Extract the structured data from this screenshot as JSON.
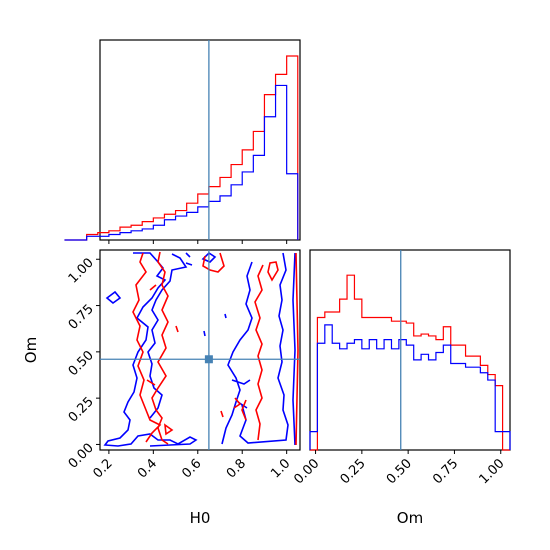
{
  "chart_data": {
    "type": "corner",
    "parameters": [
      "H0",
      "Om"
    ],
    "truths": {
      "H0": 0.65,
      "Om": 0.46
    },
    "truth_color": "#4682b4",
    "series": [
      {
        "color": "#ff0000"
      },
      {
        "color": "#0000ff"
      }
    ],
    "hist_H0": {
      "bins": [
        0.0,
        0.05,
        0.1,
        0.15,
        0.2,
        0.25,
        0.3,
        0.35,
        0.4,
        0.45,
        0.5,
        0.55,
        0.6,
        0.65,
        0.7,
        0.75,
        0.8,
        0.85,
        0.9,
        0.95,
        1.0,
        1.05
      ],
      "red": [
        0,
        0,
        0.03,
        0.04,
        0.05,
        0.07,
        0.08,
        0.1,
        0.12,
        0.14,
        0.16,
        0.2,
        0.25,
        0.29,
        0.34,
        0.41,
        0.49,
        0.59,
        0.79,
        0.9,
        1.0
      ],
      "blue": [
        0,
        0,
        0.02,
        0.02,
        0.03,
        0.04,
        0.05,
        0.06,
        0.08,
        0.11,
        0.13,
        0.15,
        0.18,
        0.21,
        0.24,
        0.3,
        0.37,
        0.46,
        0.67,
        0.84,
        0.36
      ]
    },
    "hist_Om": {
      "bins": [
        -0.03,
        0.01,
        0.05,
        0.09,
        0.13,
        0.17,
        0.21,
        0.25,
        0.29,
        0.33,
        0.37,
        0.41,
        0.45,
        0.49,
        0.53,
        0.57,
        0.61,
        0.65,
        0.69,
        0.73,
        0.77,
        0.81,
        0.85,
        0.89,
        0.93,
        0.97,
        1.01,
        1.05
      ],
      "red": [
        0.75,
        0.0,
        0.0,
        0.0,
        0.0,
        0.0,
        0.0,
        0.0,
        0.0,
        0.0,
        0.0,
        0.0,
        0.0,
        0.0,
        0.0,
        0.0,
        0.0,
        0.0,
        0.0,
        0.0,
        0.0,
        0.0,
        0.0,
        0.0,
        0.0,
        0.0,
        0.0
      ],
      "red_vals": [
        0.0,
        0.72,
        0.75,
        0.75,
        0.82,
        0.95,
        0.82,
        0.72,
        0.72,
        0.72,
        0.72,
        0.7,
        0.7,
        0.69,
        0.62,
        0.63,
        0.62,
        0.6,
        0.67,
        0.57,
        0.57,
        0.51,
        0.51,
        0.46,
        0.41,
        0.35,
        0.0
      ],
      "blue_vals": [
        0.1,
        0.58,
        0.68,
        0.58,
        0.55,
        0.58,
        0.6,
        0.55,
        0.6,
        0.55,
        0.6,
        0.55,
        0.6,
        0.57,
        0.49,
        0.52,
        0.49,
        0.53,
        0.57,
        0.47,
        0.47,
        0.45,
        0.45,
        0.42,
        0.38,
        0.1,
        0.1
      ]
    },
    "ticks_H0": [
      "0.2",
      "0.4",
      "0.6",
      "0.8",
      "1.0"
    ],
    "ticks_H0_values": [
      0.2,
      0.4,
      0.6,
      0.8,
      1.0
    ],
    "ticks_Om": [
      "0.00",
      "0.25",
      "0.50",
      "0.75",
      "1.00"
    ],
    "ticks_Om_values": [
      0.0,
      0.25,
      0.5,
      0.75,
      1.0
    ],
    "xlabel_left": "H0",
    "xlabel_right": "Om",
    "ylabel_2d": "Om",
    "range_H0": [
      0.16,
      1.06
    ],
    "range_Om": [
      -0.03,
      1.05
    ]
  }
}
